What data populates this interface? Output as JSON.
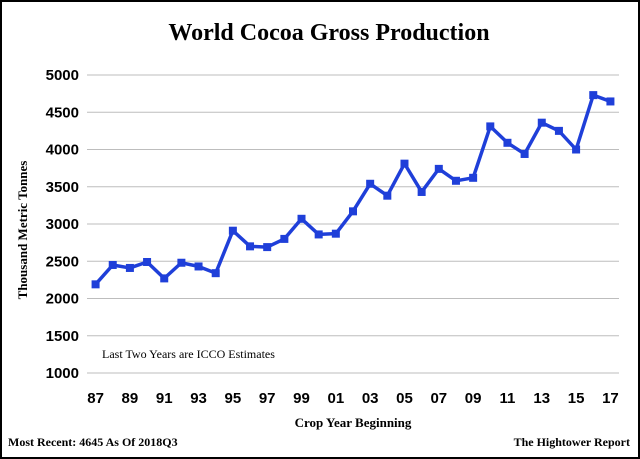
{
  "footer": {
    "left": "Most Recent: 4645 As Of 2018Q3",
    "right": "The Hightower Report"
  },
  "chart_data": {
    "type": "line",
    "title": "World Cocoa Gross Production",
    "xlabel": "Crop Year Beginning",
    "ylabel": "Thousand Metric Tonnes",
    "annotation": "Last Two Years are ICCO Estimates",
    "ylim": [
      1000,
      5000
    ],
    "yticks": [
      1000,
      1500,
      2000,
      2500,
      3000,
      3500,
      4000,
      4500,
      5000
    ],
    "xticks": [
      "87",
      "89",
      "91",
      "93",
      "95",
      "97",
      "99",
      "01",
      "03",
      "05",
      "07",
      "09",
      "11",
      "13",
      "15",
      "17"
    ],
    "grid": "horizontal",
    "legend": "none",
    "line_color": "#1f3fd9",
    "series": [
      {
        "x": [
          1987,
          1988,
          1989,
          1990,
          1991,
          1992,
          1993,
          1994,
          1995,
          1996,
          1997,
          1998,
          1999,
          2000,
          2001,
          2002,
          2003,
          2004,
          2005,
          2006,
          2007,
          2008,
          2009,
          2010,
          2011,
          2012,
          2013,
          2014,
          2015,
          2016,
          2017
        ],
        "values": [
          2190,
          2450,
          2410,
          2490,
          2270,
          2480,
          2430,
          2340,
          2910,
          2700,
          2690,
          2800,
          3070,
          2860,
          2870,
          3170,
          3540,
          3380,
          3810,
          3430,
          3740,
          3580,
          3620,
          4310,
          4090,
          3940,
          4360,
          4250,
          4000,
          4730,
          4645
        ]
      }
    ]
  }
}
